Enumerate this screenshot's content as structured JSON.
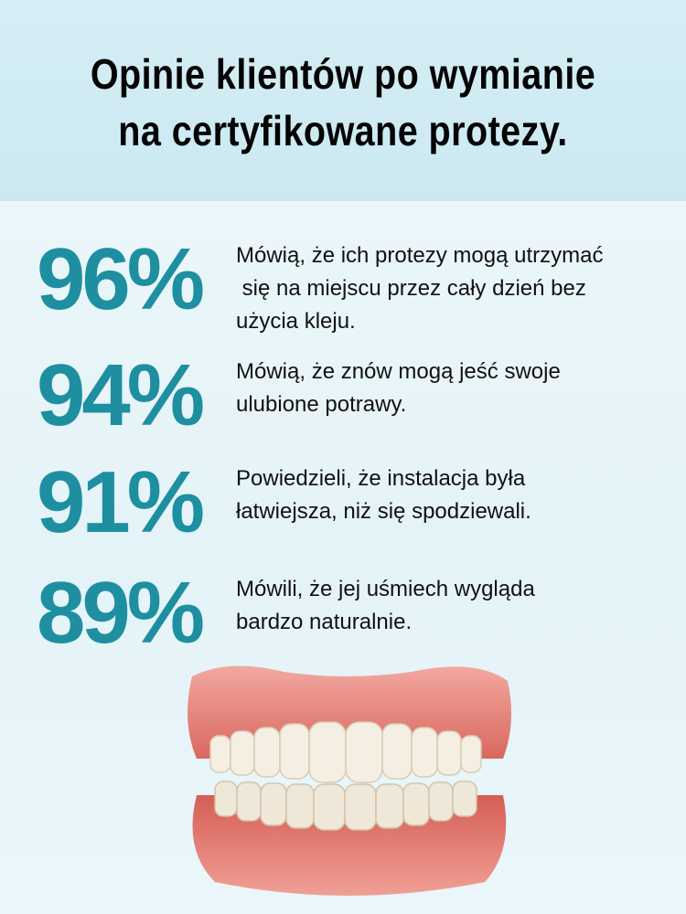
{
  "colors": {
    "accent": "#1e8fa0",
    "header_bg": "#cfeaf2",
    "text": "#111111"
  },
  "title": {
    "line1": "Opinie klientów po wymianie",
    "line2": "na certyfikowane protezy."
  },
  "stats": [
    {
      "value": "96%",
      "text": "Mówią, że ich protezy mogą utrzymać\n się na miejscu przez cały dzień bez\nużycia kleju."
    },
    {
      "value": "94%",
      "text": "Mówią, że znów mogą jeść swoje\nulubione potrawy."
    },
    {
      "value": "91%",
      "text": "Powiedzieli, że instalacja była\nłatwiejsza, niż się spodziewali."
    },
    {
      "value": "89%",
      "text": "Mówili, że jej uśmiech wygląda\nbardzo naturalnie."
    }
  ],
  "image": {
    "icon": "denture-image"
  }
}
